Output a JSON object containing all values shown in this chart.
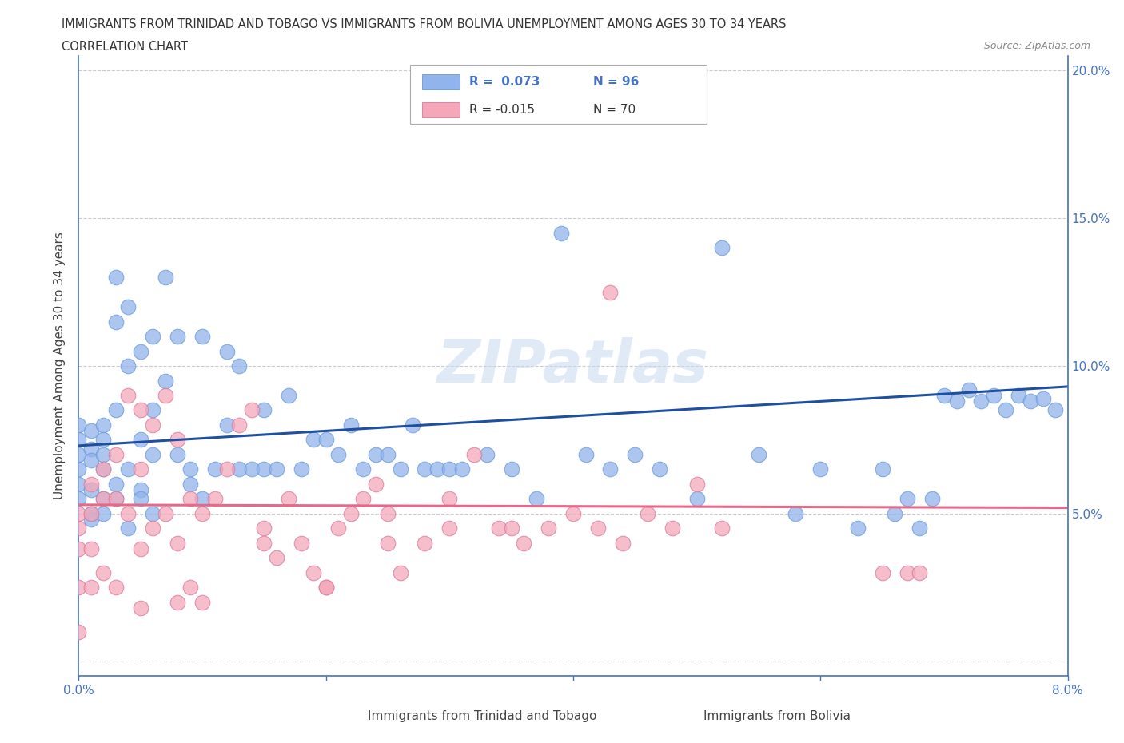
{
  "title_line1": "IMMIGRANTS FROM TRINIDAD AND TOBAGO VS IMMIGRANTS FROM BOLIVIA UNEMPLOYMENT AMONG AGES 30 TO 34 YEARS",
  "title_line2": "CORRELATION CHART",
  "source_text": "Source: ZipAtlas.com",
  "ylabel": "Unemployment Among Ages 30 to 34 years",
  "watermark": "ZIPatlas",
  "xlim": [
    0.0,
    0.08
  ],
  "ylim": [
    -0.005,
    0.205
  ],
  "xticks": [
    0.0,
    0.02,
    0.04,
    0.06,
    0.08
  ],
  "xtick_labels": [
    "0.0%",
    "",
    "",
    "",
    "8.0%"
  ],
  "yticks": [
    0.0,
    0.05,
    0.1,
    0.15,
    0.2
  ],
  "ytick_labels": [
    "",
    "5.0%",
    "10.0%",
    "15.0%",
    "20.0%"
  ],
  "legend1_label": "Immigrants from Trinidad and Tobago",
  "legend2_label": "Immigrants from Bolivia",
  "R1": 0.073,
  "N1": 96,
  "R2": -0.015,
  "N2": 70,
  "color1": "#92B4EC",
  "color2": "#F4A7B9",
  "line1_color": "#1f4fa0",
  "line2_color": "#e8688a",
  "axis_color": "#4472C4",
  "trinidad_x": [
    0.0,
    0.0,
    0.0,
    0.0,
    0.001,
    0.001,
    0.001,
    0.001,
    0.002,
    0.002,
    0.002,
    0.002,
    0.002,
    0.003,
    0.003,
    0.003,
    0.003,
    0.004,
    0.004,
    0.004,
    0.005,
    0.005,
    0.005,
    0.006,
    0.006,
    0.006,
    0.007,
    0.007,
    0.008,
    0.008,
    0.009,
    0.009,
    0.01,
    0.01,
    0.011,
    0.012,
    0.012,
    0.013,
    0.013,
    0.014,
    0.015,
    0.015,
    0.016,
    0.017,
    0.018,
    0.019,
    0.02,
    0.021,
    0.022,
    0.023,
    0.024,
    0.025,
    0.026,
    0.027,
    0.028,
    0.029,
    0.03,
    0.031,
    0.033,
    0.035,
    0.037,
    0.039,
    0.041,
    0.043,
    0.045,
    0.047,
    0.05,
    0.052,
    0.055,
    0.058,
    0.06,
    0.063,
    0.065,
    0.066,
    0.067,
    0.068,
    0.069,
    0.07,
    0.071,
    0.072,
    0.073,
    0.074,
    0.075,
    0.076,
    0.077,
    0.078,
    0.079,
    0.0,
    0.0,
    0.001,
    0.001,
    0.002,
    0.003,
    0.004,
    0.005,
    0.006
  ],
  "trinidad_y": [
    0.075,
    0.07,
    0.065,
    0.06,
    0.078,
    0.072,
    0.068,
    0.058,
    0.08,
    0.075,
    0.07,
    0.065,
    0.055,
    0.085,
    0.13,
    0.115,
    0.06,
    0.12,
    0.1,
    0.065,
    0.105,
    0.075,
    0.058,
    0.11,
    0.085,
    0.07,
    0.13,
    0.095,
    0.11,
    0.07,
    0.065,
    0.06,
    0.11,
    0.055,
    0.065,
    0.105,
    0.08,
    0.1,
    0.065,
    0.065,
    0.085,
    0.065,
    0.065,
    0.09,
    0.065,
    0.075,
    0.075,
    0.07,
    0.08,
    0.065,
    0.07,
    0.07,
    0.065,
    0.08,
    0.065,
    0.065,
    0.065,
    0.065,
    0.07,
    0.065,
    0.055,
    0.145,
    0.07,
    0.065,
    0.07,
    0.065,
    0.055,
    0.14,
    0.07,
    0.05,
    0.065,
    0.045,
    0.065,
    0.05,
    0.055,
    0.045,
    0.055,
    0.09,
    0.088,
    0.092,
    0.088,
    0.09,
    0.085,
    0.09,
    0.088,
    0.089,
    0.085,
    0.055,
    0.08,
    0.048,
    0.05,
    0.05,
    0.055,
    0.045,
    0.055,
    0.05
  ],
  "bolivia_x": [
    0.0,
    0.0,
    0.0,
    0.0,
    0.0,
    0.001,
    0.001,
    0.001,
    0.001,
    0.002,
    0.002,
    0.002,
    0.003,
    0.003,
    0.003,
    0.004,
    0.004,
    0.005,
    0.005,
    0.005,
    0.006,
    0.006,
    0.007,
    0.007,
    0.008,
    0.008,
    0.009,
    0.009,
    0.01,
    0.01,
    0.011,
    0.012,
    0.013,
    0.014,
    0.015,
    0.016,
    0.017,
    0.018,
    0.019,
    0.02,
    0.021,
    0.022,
    0.023,
    0.024,
    0.025,
    0.026,
    0.028,
    0.03,
    0.032,
    0.034,
    0.036,
    0.038,
    0.04,
    0.042,
    0.044,
    0.046,
    0.048,
    0.05,
    0.052,
    0.043,
    0.065,
    0.067,
    0.068,
    0.015,
    0.02,
    0.025,
    0.03,
    0.035,
    0.005,
    0.008
  ],
  "bolivia_y": [
    0.05,
    0.045,
    0.038,
    0.025,
    0.01,
    0.06,
    0.05,
    0.038,
    0.025,
    0.065,
    0.055,
    0.03,
    0.07,
    0.055,
    0.025,
    0.09,
    0.05,
    0.085,
    0.065,
    0.038,
    0.08,
    0.045,
    0.09,
    0.05,
    0.075,
    0.04,
    0.055,
    0.025,
    0.05,
    0.02,
    0.055,
    0.065,
    0.08,
    0.085,
    0.045,
    0.035,
    0.055,
    0.04,
    0.03,
    0.025,
    0.045,
    0.05,
    0.055,
    0.06,
    0.04,
    0.03,
    0.04,
    0.055,
    0.07,
    0.045,
    0.04,
    0.045,
    0.05,
    0.045,
    0.04,
    0.05,
    0.045,
    0.06,
    0.045,
    0.125,
    0.03,
    0.03,
    0.03,
    0.04,
    0.025,
    0.05,
    0.045,
    0.045,
    0.018,
    0.02
  ]
}
